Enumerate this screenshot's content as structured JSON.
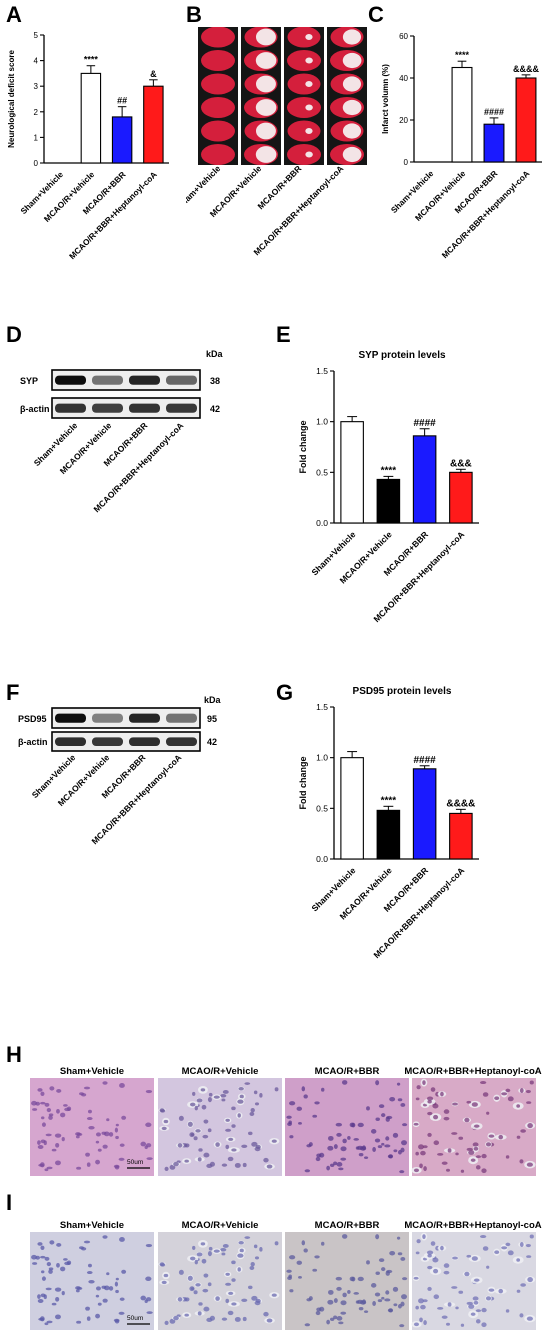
{
  "groups": [
    "Sham+Vehicle",
    "MCAO/R+Vehicle",
    "MCAO/R+BBR",
    "MCAO/R+BBR+Heptanoyl-coA"
  ],
  "group_colors": [
    "#ffffff",
    "#000000",
    "#1a1aff",
    "#ff1a1a"
  ],
  "panels": {
    "A": "A",
    "B": "B",
    "C": "C",
    "D": "D",
    "E": "E",
    "F": "F",
    "G": "G",
    "H": "H",
    "I": "I"
  },
  "blot_D": {
    "kda_header": "kDa",
    "rows": [
      {
        "label": "SYP",
        "kda": "38"
      },
      {
        "label": "β-actin",
        "kda": "42"
      }
    ]
  },
  "blot_F": {
    "kda_header": "kDa",
    "rows": [
      {
        "label": "PSD95",
        "kda": "95"
      },
      {
        "label": "β-actin",
        "kda": "42"
      }
    ]
  },
  "scale_bar": "50um",
  "chart_data": [
    {
      "panel": "A",
      "type": "bar",
      "title": "",
      "xlabel": "",
      "ylabel": "Neurological deficit score",
      "ylim": [
        0,
        5
      ],
      "yticks": [
        "0",
        "1",
        "2",
        "3",
        "4",
        "5"
      ],
      "categories": [
        "Sham+Vehicle",
        "MCAO/R+Vehicle",
        "MCAO/R+BBR",
        "MCAO/R+BBR+Heptanoyl-coA"
      ],
      "values": [
        0,
        3.5,
        1.8,
        3.0
      ],
      "errors": [
        0,
        0.3,
        0.4,
        0.25
      ],
      "annotations": [
        "",
        "****",
        "##",
        "&"
      ],
      "colors": [
        "#ffffff",
        "#ffffff",
        "#1a1aff",
        "#ff1a1a"
      ]
    },
    {
      "panel": "C",
      "type": "bar",
      "title": "",
      "xlabel": "",
      "ylabel": "Infarct volumn (%)",
      "ylim": [
        0,
        60
      ],
      "yticks": [
        "0",
        "20",
        "40",
        "60"
      ],
      "categories": [
        "Sham+Vehicle",
        "MCAO/R+Vehicle",
        "MCAO/R+BBR",
        "MCAO/R+BBR+Heptanoyl-coA"
      ],
      "values": [
        0,
        45,
        18,
        40
      ],
      "errors": [
        0,
        3,
        3,
        1.5
      ],
      "annotations": [
        "",
        "****",
        "####",
        "&&&&"
      ],
      "colors": [
        "#ffffff",
        "#ffffff",
        "#1a1aff",
        "#ff1a1a"
      ]
    },
    {
      "panel": "E",
      "type": "bar",
      "title": "SYP protein levels",
      "xlabel": "",
      "ylabel": "Fold change",
      "ylim": [
        0,
        1.5
      ],
      "yticks": [
        "0.0",
        "0.5",
        "1.0",
        "1.5"
      ],
      "categories": [
        "Sham+Vehicle",
        "MCAO/R+Vehicle",
        "MCAO/R+BBR",
        "MCAO/R+BBR+Heptanoyl-coA"
      ],
      "values": [
        1.0,
        0.43,
        0.86,
        0.5
      ],
      "errors": [
        0.05,
        0.03,
        0.07,
        0.03
      ],
      "annotations": [
        "",
        "****",
        "####",
        "&&&"
      ],
      "colors": [
        "#ffffff",
        "#000000",
        "#1a1aff",
        "#ff1a1a"
      ]
    },
    {
      "panel": "G",
      "type": "bar",
      "title": "PSD95 protein levels",
      "xlabel": "",
      "ylabel": "Fold change",
      "ylim": [
        0,
        1.5
      ],
      "yticks": [
        "0.0",
        "0.5",
        "1.0",
        "1.5"
      ],
      "categories": [
        "Sham+Vehicle",
        "MCAO/R+Vehicle",
        "MCAO/R+BBR",
        "MCAO/R+BBR+Heptanoyl-coA"
      ],
      "values": [
        1.0,
        0.48,
        0.89,
        0.45
      ],
      "errors": [
        0.06,
        0.04,
        0.03,
        0.04
      ],
      "annotations": [
        "",
        "****",
        "####",
        "&&&&"
      ],
      "colors": [
        "#ffffff",
        "#000000",
        "#1a1aff",
        "#ff1a1a"
      ]
    }
  ]
}
